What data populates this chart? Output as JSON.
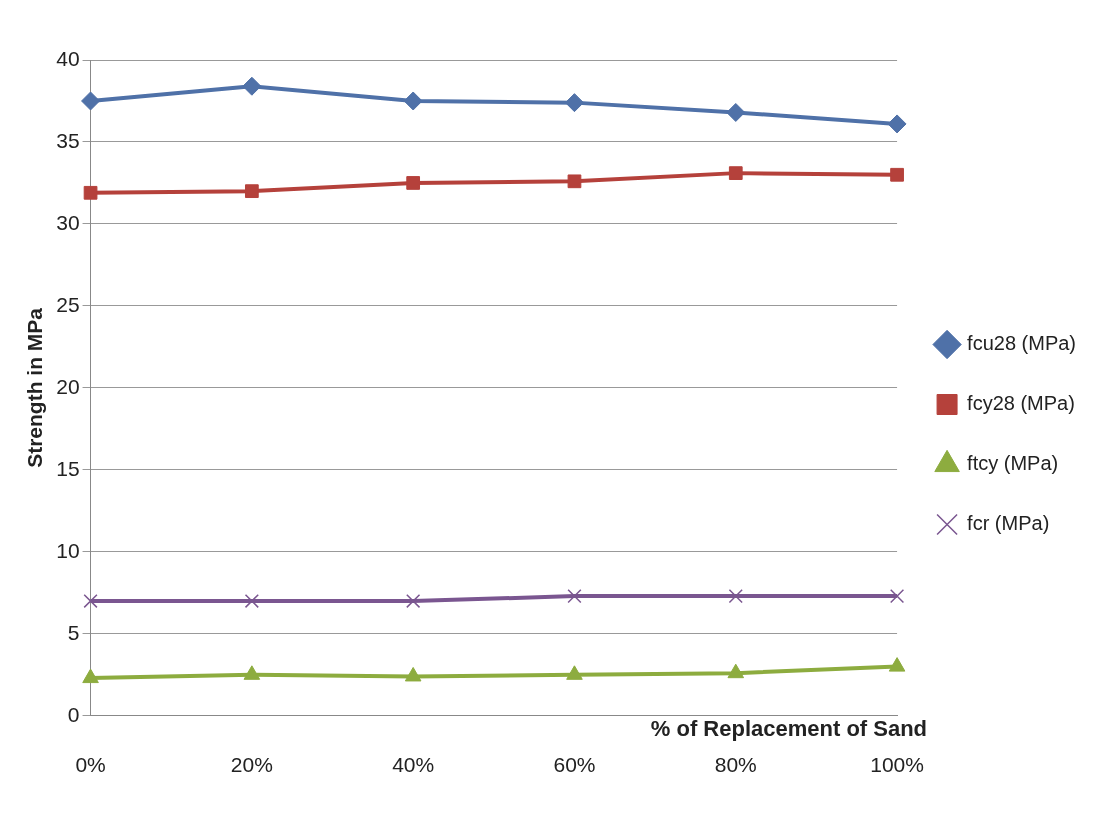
{
  "chart_data": {
    "type": "line",
    "xlabel": "% of Replacement of Sand",
    "ylabel": "Strength in MPa",
    "categories": [
      "0%",
      "20%",
      "40%",
      "60%",
      "80%",
      "100%"
    ],
    "series": [
      {
        "name": "fcu28 (MPa)",
        "color": "#4f71a8",
        "marker": "diamond",
        "values": [
          37.5,
          38.4,
          37.5,
          37.4,
          36.8,
          36.1
        ]
      },
      {
        "name": "fcy28 (MPa)",
        "color": "#b5413b",
        "marker": "square",
        "values": [
          31.9,
          32.0,
          32.5,
          32.6,
          33.1,
          33.0
        ]
      },
      {
        "name": "ftcy (MPa)",
        "color": "#8dac3f",
        "marker": "triangle",
        "values": [
          2.3,
          2.5,
          2.4,
          2.5,
          2.6,
          3.0
        ]
      },
      {
        "name": "fcr (MPa)",
        "color": "#7a5690",
        "marker": "cross",
        "values": [
          7.0,
          7.0,
          7.0,
          7.3,
          7.3,
          7.3
        ]
      }
    ],
    "ylim": [
      0,
      40
    ],
    "yticks": [
      0,
      5,
      10,
      15,
      20,
      25,
      30,
      35,
      40
    ],
    "grid": "y",
    "legend": "right"
  }
}
